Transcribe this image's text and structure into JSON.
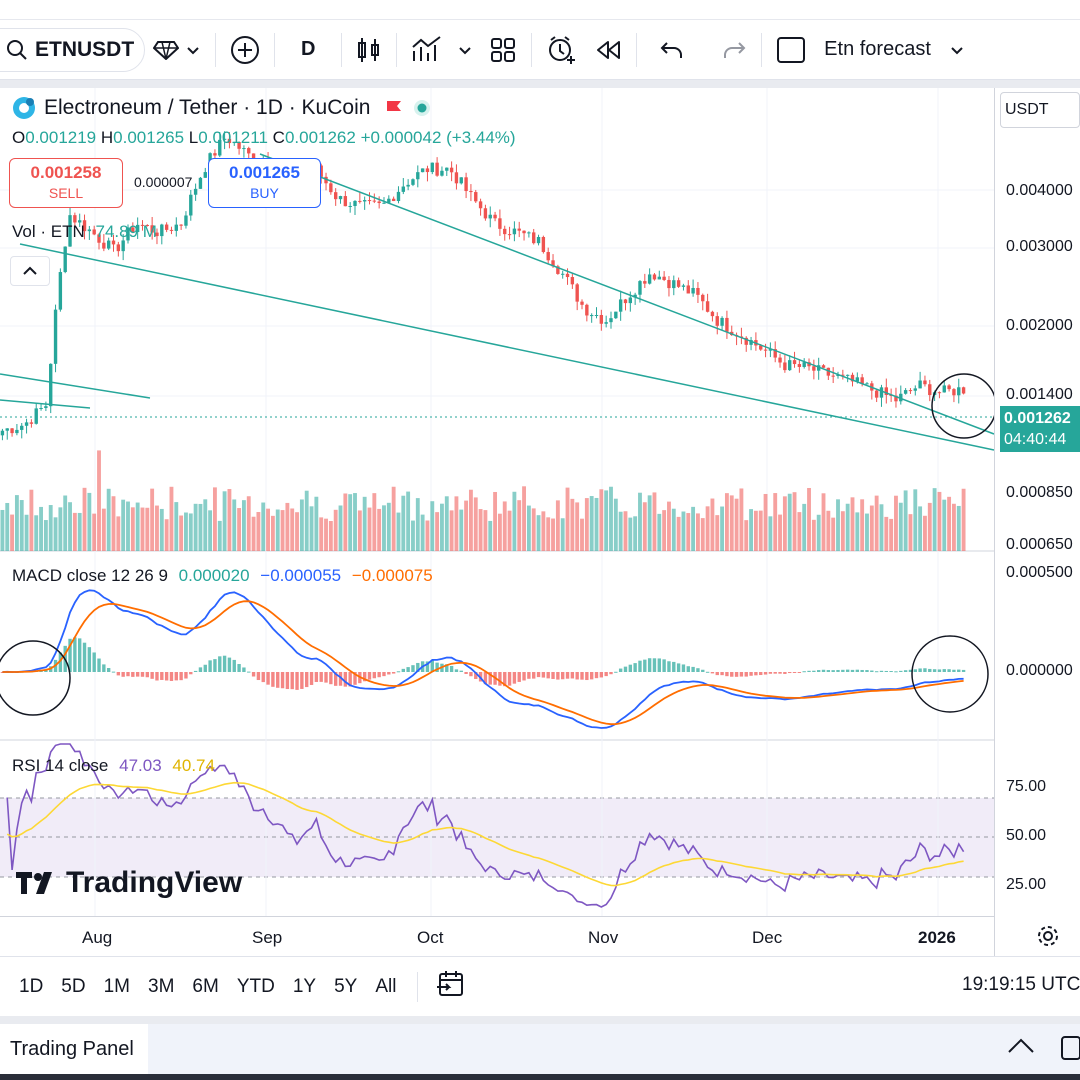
{
  "toolbar": {
    "symbol": "ETNUSDT",
    "interval": "D",
    "layout_name": "Etn forecast",
    "icons": [
      "search-icon",
      "diamond-icon",
      "chevron-down-icon",
      "plus-circle-icon",
      "candles-icon",
      "indicators-icon",
      "chevron-down-icon",
      "templates-icon",
      "alert-icon",
      "replay-icon",
      "undo-icon",
      "redo-icon"
    ]
  },
  "legend": {
    "title": "Electroneum / Tether · 1D · KuCoin",
    "ohlc_o": "0.001219",
    "ohlc_h": "0.001265",
    "ohlc_l": "0.001211",
    "ohlc_c": "0.001262",
    "change": "+0.000042 (+3.44%)",
    "o_key": "O",
    "h_key": "H",
    "l_key": "L",
    "c_key": "C"
  },
  "trade": {
    "sell_price": "0.001258",
    "sell_label": "SELL",
    "spread": "0.000007",
    "buy_price": "0.001265",
    "buy_label": "BUY"
  },
  "volume": {
    "label": "Vol · ETN",
    "value": "74.89 M"
  },
  "macd": {
    "label": "MACD close 12 26 9",
    "hist": "0.000020",
    "macd": "−0.000055",
    "signal": "−0.000075"
  },
  "rsi": {
    "label": "RSI 14 close",
    "rsi": "47.03",
    "ma": "40.74"
  },
  "price_axis": {
    "currency": "USDT",
    "labels": [
      "0.004000",
      "0.003000",
      "0.002000",
      "0.001400",
      "0.000850",
      "0.000650"
    ],
    "current_price": "0.001262",
    "countdown": "04:40:44",
    "macd_labels": [
      "0.000500",
      "0.000000"
    ],
    "rsi_labels": [
      "75.00",
      "50.00",
      "25.00"
    ]
  },
  "time_axis": {
    "labels": [
      "Aug",
      "Sep",
      "Oct",
      "Nov",
      "Dec",
      "2026"
    ]
  },
  "ranges": [
    "1D",
    "5D",
    "1M",
    "3M",
    "6M",
    "YTD",
    "1Y",
    "5Y",
    "All"
  ],
  "clock": "19:19:15 UTC",
  "panel": {
    "label": "Trading Panel"
  },
  "watermark": "TradingView",
  "colors": {
    "up": "#26a69a",
    "down": "#ef5350",
    "macd": "#2962ff",
    "signal": "#ff6d00",
    "rsi": "#7e57c2",
    "rsi_ma": "#fdd835"
  },
  "chart_data": {
    "type": "candlestick",
    "title": "Electroneum / Tether · 1D · KuCoin",
    "x": [
      "Jul-16",
      "Jul-20",
      "Jul-24",
      "Jul-28",
      "Aug-01",
      "Aug-05",
      "Aug-09",
      "Aug-13",
      "Aug-17",
      "Aug-21",
      "Aug-25",
      "Aug-29",
      "Sep-02",
      "Sep-06",
      "Sep-10",
      "Sep-14",
      "Sep-18",
      "Sep-22",
      "Sep-26",
      "Sep-30",
      "Oct-04",
      "Oct-08",
      "Oct-12",
      "Oct-16",
      "Oct-20",
      "Oct-24",
      "Oct-28",
      "Nov-01",
      "Nov-05",
      "Nov-09",
      "Nov-13",
      "Nov-17",
      "Nov-21",
      "Nov-25",
      "Nov-29",
      "Dec-03",
      "Dec-07",
      "Dec-11",
      "Dec-15",
      "Dec-19",
      "Dec-23",
      "Dec-27",
      "Dec-31",
      "Jan-04"
    ],
    "close": [
      0.00105,
      0.00108,
      0.00118,
      0.0027,
      0.0025,
      0.0023,
      0.0026,
      0.0025,
      0.0026,
      0.0033,
      0.0038,
      0.0035,
      0.0034,
      0.0031,
      0.0033,
      0.0029,
      0.0028,
      0.0028,
      0.0031,
      0.0033,
      0.0033,
      0.0029,
      0.0026,
      0.0025,
      0.0024,
      0.0021,
      0.0018,
      0.0017,
      0.0019,
      0.0021,
      0.002,
      0.0019,
      0.0017,
      0.0016,
      0.0015,
      0.0014,
      0.00138,
      0.00134,
      0.0013,
      0.00125,
      0.0012,
      0.00128,
      0.00124,
      0.00126
    ],
    "ylim": [
      0.00062,
      0.0047
    ],
    "log_scale": true,
    "trendlines": "descending channel",
    "macd_range": [
      -0.0002,
      0.0005
    ],
    "rsi_levels": [
      70,
      50,
      30
    ]
  }
}
